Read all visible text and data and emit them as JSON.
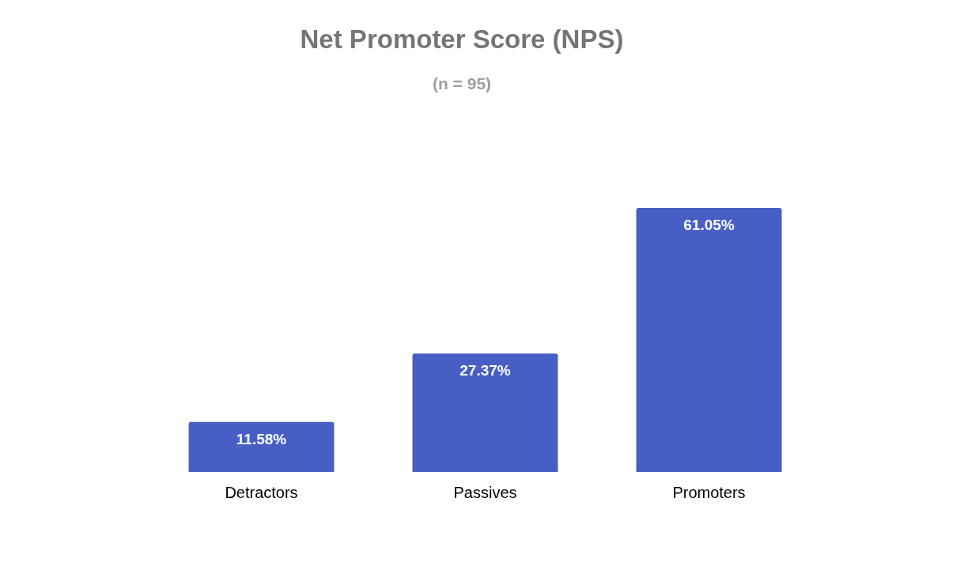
{
  "chart_data": {
    "type": "bar",
    "title": "Net Promoter Score (NPS)",
    "subtitle": "(n = 95)",
    "categories": [
      "Detractors",
      "Passives",
      "Promoters"
    ],
    "values": [
      11.58,
      27.37,
      61.05
    ],
    "value_labels": [
      "11.58%",
      "27.37%",
      "61.05%"
    ],
    "color": "#475fc4",
    "grid": false
  }
}
